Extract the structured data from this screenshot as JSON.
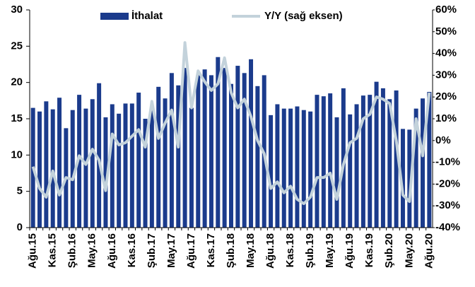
{
  "chart_data": {
    "type": "bar_line",
    "categories": [
      "Ağu.15",
      null,
      null,
      "Kas.15",
      null,
      null,
      "Şub.16",
      null,
      null,
      "May.16",
      null,
      null,
      "Ağu.16",
      null,
      null,
      "Kas.16",
      null,
      null,
      "Şub.17",
      null,
      null,
      "May.17",
      null,
      null,
      "Ağu.17",
      null,
      null,
      "Kas.17",
      null,
      null,
      "Şub.18",
      null,
      null,
      "May.18",
      null,
      null,
      "Ağu.18",
      null,
      null,
      "Kas.18",
      null,
      null,
      "Şub.19",
      null,
      null,
      "May.19",
      null,
      null,
      "Ağu.19",
      null,
      null,
      "Kas.19",
      null,
      null,
      "Şub.20",
      null,
      null,
      "May.20",
      null,
      null,
      "Ağu.20"
    ],
    "series": [
      {
        "name": "İthalat",
        "color": "#1b3b8c",
        "kind": "bar",
        "values": [
          16.5,
          16.0,
          17.4,
          16.3,
          17.9,
          13.7,
          16.2,
          18.3,
          16.4,
          17.7,
          19.9,
          15.2,
          17.0,
          15.7,
          17.1,
          17.1,
          18.6,
          15.0,
          16.3,
          19.4,
          17.8,
          21.3,
          19.6,
          22.0,
          16.5,
          21.0,
          21.8,
          21.0,
          23.5,
          22.0,
          19.8,
          22.3,
          21.3,
          23.2,
          19.5,
          21.0,
          15.5,
          17.0,
          16.4,
          16.4,
          16.7,
          16.2,
          16.0,
          18.3,
          18.1,
          18.5,
          15.2,
          19.2,
          15.6,
          17.0,
          18.2,
          18.3,
          20.1,
          19.2,
          17.7,
          18.9,
          13.6,
          13.5,
          16.4,
          17.8,
          18.7
        ]
      },
      {
        "name": "Y/Y (sağ eksen)",
        "color": "#c3d2db",
        "kind": "line",
        "axis": "y2",
        "values": [
          -12,
          -22,
          -26,
          -14,
          -25,
          -17,
          -18,
          -7,
          -11,
          -4,
          -9,
          -23,
          3,
          -2,
          -1,
          2,
          5,
          -3,
          18,
          1,
          8,
          14,
          -3,
          45,
          15,
          32,
          27,
          23,
          26,
          38,
          22,
          15,
          19,
          11,
          0,
          -6,
          -22,
          -19,
          -24,
          -21,
          -27,
          -29,
          -26,
          -17,
          -17,
          -15,
          -27,
          -11,
          -1,
          1,
          10,
          12,
          20,
          19,
          17,
          0,
          -25,
          -28,
          10,
          -7,
          22
        ]
      }
    ],
    "ylim": [
      0,
      30
    ],
    "yticks": [
      0,
      5,
      10,
      15,
      20,
      25,
      30
    ],
    "y2lim": [
      -40,
      60
    ],
    "y2ticks": [
      {
        "value": -40,
        "label": "-40%"
      },
      {
        "value": -30,
        "label": "-30%"
      },
      {
        "value": -20,
        "label": "-20%"
      },
      {
        "value": -10,
        "label": "-10%"
      },
      {
        "value": 0,
        "label": "0%"
      },
      {
        "value": 10,
        "label": "10%"
      },
      {
        "value": 20,
        "label": "20%"
      },
      {
        "value": 30,
        "label": "30%"
      },
      {
        "value": 40,
        "label": "40%"
      },
      {
        "value": 50,
        "label": "50%"
      },
      {
        "value": 60,
        "label": "60%"
      }
    ],
    "legend": "top"
  }
}
